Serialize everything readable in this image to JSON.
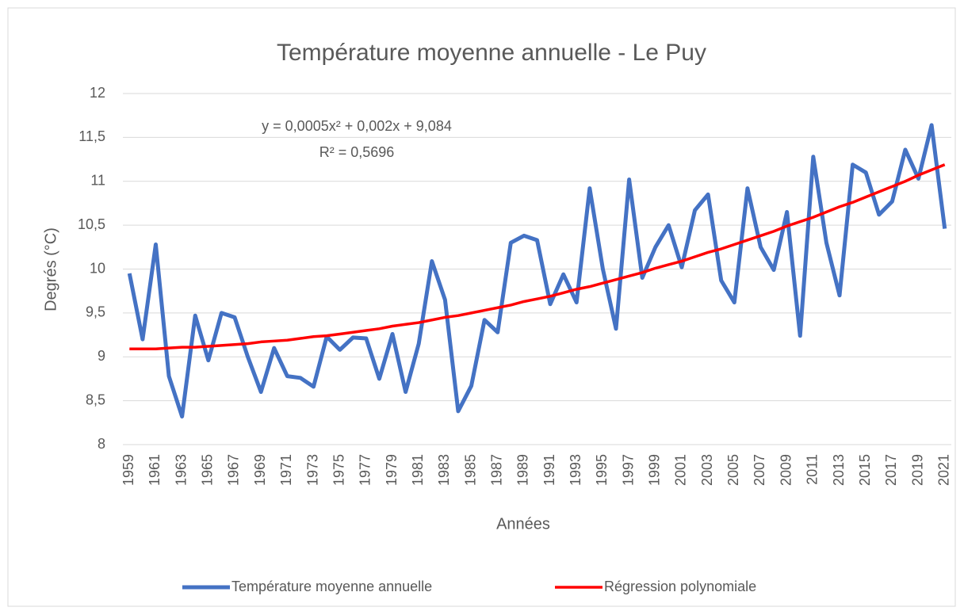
{
  "chart_data": {
    "type": "line",
    "title": "Température moyenne annuelle - Le Puy",
    "x_label": "Années",
    "y_label": "Degrés (°C)",
    "annotations": [
      "y = 0,0005x² + 0,002x + 9,084",
      "R² = 0,5696"
    ],
    "categories": [
      "1959",
      null,
      "1961",
      null,
      "1963",
      null,
      "1965",
      null,
      "1967",
      null,
      "1969",
      null,
      "1971",
      null,
      "1973",
      null,
      "1975",
      null,
      "1977",
      null,
      "1979",
      null,
      "1981",
      null,
      "1983",
      null,
      "1985",
      null,
      "1987",
      null,
      "1989",
      null,
      "1991",
      null,
      "1993",
      null,
      "1995",
      null,
      "1997",
      null,
      "1999",
      null,
      "2001",
      null,
      "2003",
      null,
      "2005",
      null,
      "2007",
      null,
      "2009",
      null,
      "2011",
      null,
      "2013",
      null,
      "2015",
      null,
      "2017",
      null,
      "2019",
      null,
      "2021"
    ],
    "series": [
      {
        "name": "Température moyenne annuelle",
        "color": "#4472c4",
        "values": [
          9.95,
          9.2,
          10.28,
          8.78,
          8.32,
          9.47,
          8.96,
          9.5,
          9.45,
          9.0,
          8.6,
          9.1,
          8.78,
          8.76,
          8.66,
          9.23,
          9.08,
          9.22,
          9.21,
          8.75,
          9.26,
          8.6,
          9.15,
          10.09,
          9.65,
          8.38,
          8.67,
          9.42,
          9.28,
          10.3,
          10.38,
          10.33,
          9.6,
          9.94,
          9.62,
          10.92,
          10.0,
          9.32,
          11.02,
          9.9,
          10.25,
          10.5,
          10.02,
          10.67,
          10.85,
          9.87,
          9.62,
          10.92,
          10.25,
          9.99,
          10.65,
          9.24,
          11.28,
          10.3,
          9.7,
          11.19,
          11.1,
          10.62,
          10.77,
          11.36,
          11.03,
          11.64,
          10.46
        ]
      },
      {
        "name": "Régression polynomiale",
        "color": "#ff0000",
        "values": [
          9.09,
          9.09,
          9.09,
          9.1,
          9.11,
          9.11,
          9.12,
          9.13,
          9.14,
          9.15,
          9.17,
          9.18,
          9.19,
          9.21,
          9.23,
          9.24,
          9.26,
          9.28,
          9.3,
          9.32,
          9.35,
          9.37,
          9.39,
          9.42,
          9.45,
          9.47,
          9.5,
          9.53,
          9.56,
          9.59,
          9.63,
          9.66,
          9.69,
          9.73,
          9.77,
          9.8,
          9.84,
          9.88,
          9.92,
          9.96,
          10.01,
          10.05,
          10.09,
          10.14,
          10.19,
          10.23,
          10.28,
          10.33,
          10.38,
          10.43,
          10.49,
          10.54,
          10.59,
          10.65,
          10.71,
          10.76,
          10.82,
          10.88,
          10.94,
          11.0,
          11.07,
          11.13,
          11.19
        ]
      }
    ],
    "ylim": [
      8,
      12
    ],
    "yticks": [
      8,
      {
        "value": 8.5,
        "label": "8,5"
      },
      9,
      {
        "value": 9.5,
        "label": "9,5"
      },
      10,
      {
        "value": 10.5,
        "label": "10,5"
      },
      11,
      {
        "value": 11.5,
        "label": "11,5"
      },
      12
    ],
    "grid": true,
    "legend": "bottom"
  }
}
